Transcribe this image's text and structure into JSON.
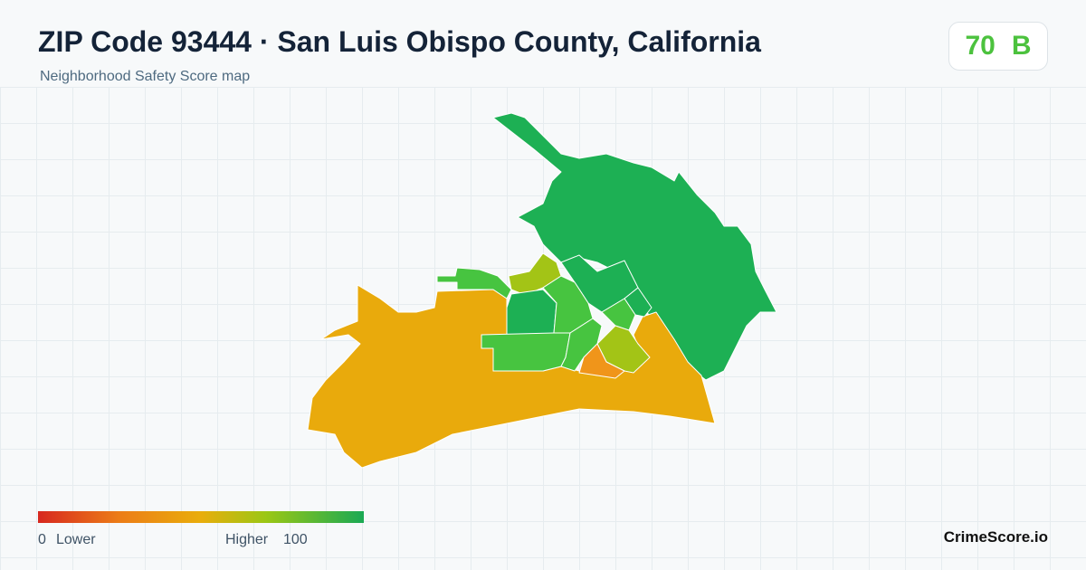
{
  "header": {
    "title": "ZIP Code 93444 · San Luis Obispo County, California",
    "subtitle": "Neighborhood Safety Score map"
  },
  "score": {
    "value": "70",
    "grade": "B"
  },
  "legend": {
    "min": "0",
    "min_label": "Lower",
    "max_label": "Higher",
    "max": "100"
  },
  "brand": "CrimeScore.io"
}
